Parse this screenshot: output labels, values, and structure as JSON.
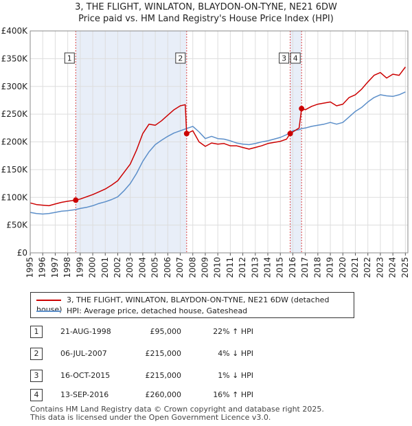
{
  "title_line1": "3, THE FLIGHT, WINLATON, BLAYDON-ON-TYNE, NE21 6DW",
  "title_line2": "Price paid vs. HM Land Registry's House Price Index (HPI)",
  "colors": {
    "property": "#cc0000",
    "hpi": "#5b8ec9",
    "shade": "#e8eef8",
    "grid": "#dddddd",
    "vline": "#dd4444"
  },
  "legend": {
    "property_label": "3, THE FLIGHT, WINLATON, BLAYDON-ON-TYNE, NE21 6DW (detached house)",
    "hpi_label": "HPI: Average price, detached house, Gateshead"
  },
  "transactions": [
    {
      "num": "1",
      "date": "21-AUG-1998",
      "price": "£95,000",
      "hpi": "22% ↑ HPI"
    },
    {
      "num": "2",
      "date": "06-JUL-2007",
      "price": "£215,000",
      "hpi": "4% ↓ HPI"
    },
    {
      "num": "3",
      "date": "16-OCT-2015",
      "price": "£215,000",
      "hpi": "1% ↓ HPI"
    },
    {
      "num": "4",
      "date": "13-SEP-2016",
      "price": "£260,000",
      "hpi": "16% ↑ HPI"
    }
  ],
  "footer_line1": "Contains HM Land Registry data © Crown copyright and database right 2025.",
  "footer_line2": "This data is licensed under the Open Government Licence v3.0.",
  "chart_data": {
    "type": "line",
    "title": "Price paid vs. HM Land Registry's House Price Index (HPI)",
    "xlabel": "",
    "ylabel": "",
    "xlim": [
      1995,
      2025.2
    ],
    "ylim": [
      0,
      400000
    ],
    "y_ticks": [
      0,
      50000,
      100000,
      150000,
      200000,
      250000,
      300000,
      350000,
      400000
    ],
    "y_tick_labels": [
      "£0",
      "£50K",
      "£100K",
      "£150K",
      "£200K",
      "£250K",
      "£300K",
      "£350K",
      "£400K"
    ],
    "x_ticks": [
      1995,
      1996,
      1997,
      1998,
      1999,
      2000,
      2001,
      2002,
      2003,
      2004,
      2005,
      2006,
      2007,
      2008,
      2009,
      2010,
      2011,
      2012,
      2013,
      2014,
      2015,
      2016,
      2017,
      2018,
      2019,
      2020,
      2021,
      2022,
      2023,
      2024,
      2025
    ],
    "grid": true,
    "shaded_ranges": [
      [
        1998.64,
        2007.51
      ],
      [
        2015.79,
        2016.7
      ]
    ],
    "sale_markers": [
      {
        "label": "1",
        "x": 1998.64,
        "y": 95000
      },
      {
        "label": "2",
        "x": 2007.51,
        "y": 215000
      },
      {
        "label": "3",
        "x": 2015.79,
        "y": 215000
      },
      {
        "label": "4",
        "x": 2016.7,
        "y": 260000
      }
    ],
    "series": [
      {
        "name": "3, THE FLIGHT, WINLATON, BLAYDON-ON-TYNE, NE21 6DW (detached house)",
        "x": [
          1995,
          1995.5,
          1996,
          1996.5,
          1997,
          1997.5,
          1998,
          1998.64,
          1999,
          1999.5,
          2000,
          2000.5,
          2001,
          2001.5,
          2002,
          2002.5,
          2003,
          2003.5,
          2004,
          2004.5,
          2005,
          2005.5,
          2006,
          2006.5,
          2007,
          2007.4,
          2007.51,
          2008,
          2008.5,
          2009,
          2009.5,
          2010,
          2010.5,
          2011,
          2011.5,
          2012,
          2012.5,
          2013,
          2013.5,
          2014,
          2014.5,
          2015,
          2015.5,
          2015.79,
          2016,
          2016.5,
          2016.7,
          2017,
          2017.5,
          2018,
          2018.5,
          2019,
          2019.5,
          2020,
          2020.5,
          2021,
          2021.5,
          2022,
          2022.5,
          2023,
          2023.5,
          2024,
          2024.5,
          2025
        ],
        "y": [
          90000,
          87000,
          86000,
          85000,
          88000,
          91000,
          93000,
          95000,
          97000,
          101000,
          105000,
          110000,
          115000,
          122000,
          130000,
          145000,
          160000,
          185000,
          215000,
          232000,
          230000,
          238000,
          248000,
          258000,
          265000,
          267000,
          215000,
          220000,
          200000,
          192000,
          198000,
          196000,
          197000,
          193000,
          193000,
          190000,
          187000,
          190000,
          193000,
          197000,
          199000,
          201000,
          205000,
          215000,
          218000,
          225000,
          260000,
          258000,
          264000,
          268000,
          270000,
          272000,
          265000,
          268000,
          280000,
          285000,
          295000,
          308000,
          320000,
          325000,
          315000,
          322000,
          320000,
          335000
        ]
      },
      {
        "name": "HPI: Average price, detached house, Gateshead",
        "x": [
          1995,
          1995.5,
          1996,
          1996.5,
          1997,
          1997.5,
          1998,
          1998.64,
          1999,
          1999.5,
          2000,
          2000.5,
          2001,
          2001.5,
          2002,
          2002.5,
          2003,
          2003.5,
          2004,
          2004.5,
          2005,
          2005.5,
          2006,
          2006.5,
          2007,
          2007.51,
          2008,
          2008.5,
          2009,
          2009.5,
          2010,
          2010.5,
          2011,
          2011.5,
          2012,
          2012.5,
          2013,
          2013.5,
          2014,
          2014.5,
          2015,
          2015.5,
          2015.79,
          2016,
          2016.5,
          2016.7,
          2017,
          2017.5,
          2018,
          2018.5,
          2019,
          2019.5,
          2020,
          2020.5,
          2021,
          2021.5,
          2022,
          2022.5,
          2023,
          2023.5,
          2024,
          2024.5,
          2025
        ],
        "y": [
          73000,
          71000,
          70000,
          71000,
          73000,
          75000,
          76000,
          78000,
          80000,
          82000,
          85000,
          89000,
          92000,
          96000,
          101000,
          112000,
          125000,
          143000,
          165000,
          182000,
          195000,
          203000,
          210000,
          216000,
          220000,
          224000,
          228000,
          218000,
          206000,
          210000,
          206000,
          205000,
          202000,
          198000,
          196000,
          195000,
          197000,
          200000,
          202000,
          205000,
          208000,
          213000,
          217000,
          220000,
          222000,
          224000,
          225000,
          228000,
          230000,
          232000,
          235000,
          232000,
          235000,
          245000,
          255000,
          262000,
          272000,
          280000,
          285000,
          283000,
          282000,
          285000,
          290000
        ]
      }
    ]
  }
}
